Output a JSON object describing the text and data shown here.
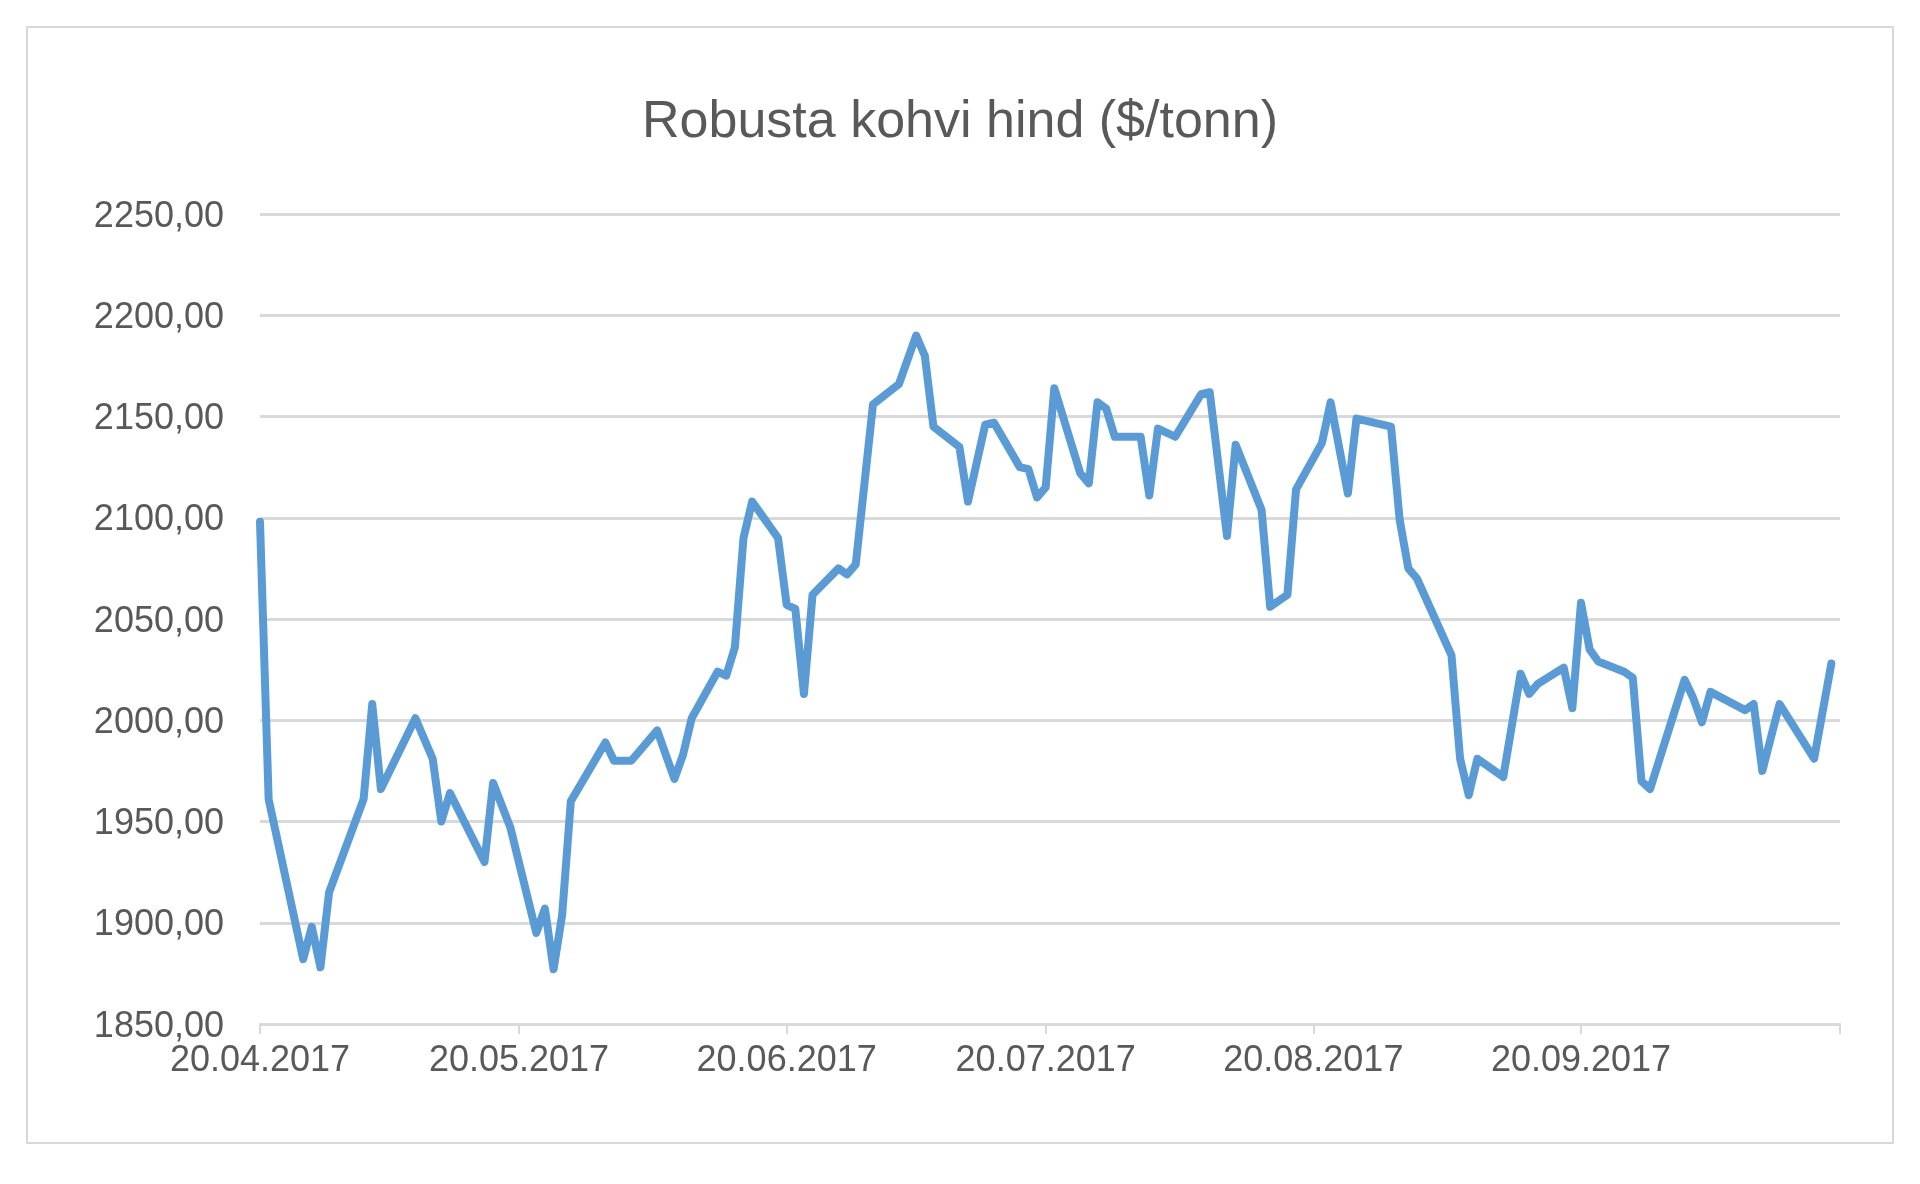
{
  "chart_data": {
    "type": "line",
    "title": "Robusta kohvi hind ($/tonn)",
    "x": [
      "2017-04-20",
      "2017-04-21",
      "2017-04-25",
      "2017-04-26",
      "2017-04-27",
      "2017-04-28",
      "2017-05-02",
      "2017-05-03",
      "2017-05-04",
      "2017-05-08",
      "2017-05-10",
      "2017-05-11",
      "2017-05-12",
      "2017-05-16",
      "2017-05-17",
      "2017-05-19",
      "2017-05-22",
      "2017-05-23",
      "2017-05-24",
      "2017-05-25",
      "2017-05-26",
      "2017-05-30",
      "2017-05-31",
      "2017-06-02",
      "2017-06-05",
      "2017-06-07",
      "2017-06-08",
      "2017-06-09",
      "2017-06-12",
      "2017-06-13",
      "2017-06-14",
      "2017-06-15",
      "2017-06-16",
      "2017-06-19",
      "2017-06-20",
      "2017-06-21",
      "2017-06-22",
      "2017-06-23",
      "2017-06-26",
      "2017-06-27",
      "2017-06-28",
      "2017-06-30",
      "2017-07-03",
      "2017-07-05",
      "2017-07-06",
      "2017-07-07",
      "2017-07-10",
      "2017-07-11",
      "2017-07-13",
      "2017-07-14",
      "2017-07-17",
      "2017-07-18",
      "2017-07-19",
      "2017-07-20",
      "2017-07-21",
      "2017-07-24",
      "2017-07-25",
      "2017-07-26",
      "2017-07-27",
      "2017-07-28",
      "2017-07-31",
      "2017-08-01",
      "2017-08-02",
      "2017-08-04",
      "2017-08-07",
      "2017-08-08",
      "2017-08-10",
      "2017-08-11",
      "2017-08-14",
      "2017-08-15",
      "2017-08-17",
      "2017-08-18",
      "2017-08-21",
      "2017-08-22",
      "2017-08-24",
      "2017-08-25",
      "2017-08-29",
      "2017-08-30",
      "2017-08-31",
      "2017-09-01",
      "2017-09-05",
      "2017-09-06",
      "2017-09-07",
      "2017-09-08",
      "2017-09-11",
      "2017-09-13",
      "2017-09-14",
      "2017-09-15",
      "2017-09-18",
      "2017-09-19",
      "2017-09-20",
      "2017-09-21",
      "2017-09-22",
      "2017-09-25",
      "2017-09-26",
      "2017-09-27",
      "2017-09-28",
      "2017-10-02",
      "2017-10-03",
      "2017-10-04",
      "2017-10-05",
      "2017-10-09",
      "2017-10-10",
      "2017-10-11",
      "2017-10-13",
      "2017-10-17",
      "2017-10-19"
    ],
    "series": [
      {
        "color": "#5b9bd5",
        "values": [
          2098,
          1961,
          1882,
          1898,
          1878,
          1915,
          1961,
          2008,
          1966,
          2001,
          1981,
          1950,
          1964,
          1930,
          1969,
          1947,
          1895,
          1907,
          1877,
          1904,
          1960,
          1989,
          1980,
          1980,
          1995,
          1971,
          1983,
          2001,
          2024,
          2022,
          2036,
          2090,
          2108,
          2090,
          2057,
          2055,
          2013,
          2062,
          2075,
          2072,
          2077,
          2156,
          2166,
          2190,
          2180,
          2145,
          2135,
          2108,
          2146,
          2147,
          2125,
          2124,
          2110,
          2115,
          2164,
          2122,
          2117,
          2157,
          2154,
          2140,
          2140,
          2111,
          2144,
          2140,
          2161,
          2162,
          2091,
          2136,
          2104,
          2056,
          2062,
          2114,
          2137,
          2157,
          2112,
          2149,
          2145,
          2099,
          2075,
          2070,
          2032,
          1981,
          1963,
          1981,
          1972,
          2023,
          2013,
          2018,
          2026,
          2006,
          2058,
          2035,
          2029,
          2024,
          2021,
          1970,
          1966,
          2020,
          2011,
          1999,
          2014,
          2005,
          2008,
          1975,
          2008,
          1981,
          2028
        ]
      }
    ],
    "xlim": [
      "2017-04-20",
      "2017-10-20"
    ],
    "xticks": [
      {
        "value": "2017-04-20",
        "label": "20.04.2017"
      },
      {
        "value": "2017-05-20",
        "label": "20.05.2017"
      },
      {
        "value": "2017-06-20",
        "label": "20.06.2017"
      },
      {
        "value": "2017-07-20",
        "label": "20.07.2017"
      },
      {
        "value": "2017-08-20",
        "label": "20.08.2017"
      },
      {
        "value": "2017-09-20",
        "label": "20.09.2017"
      },
      {
        "value": "2017-10-20",
        "label": null
      }
    ],
    "ylim": [
      1850,
      2250
    ],
    "yticks": [
      {
        "value": 1850,
        "label": "1850,00"
      },
      {
        "value": 1900,
        "label": "1900,00"
      },
      {
        "value": 1950,
        "label": "1950,00"
      },
      {
        "value": 2000,
        "label": "2000,00"
      },
      {
        "value": 2050,
        "label": "2050,00"
      },
      {
        "value": 2100,
        "label": "2100,00"
      },
      {
        "value": 2150,
        "label": "2150,00"
      },
      {
        "value": 2200,
        "label": "2200,00"
      },
      {
        "value": 2250,
        "label": "2250,00"
      }
    ],
    "grid": "y",
    "marker": "none",
    "line_style": "solid"
  }
}
